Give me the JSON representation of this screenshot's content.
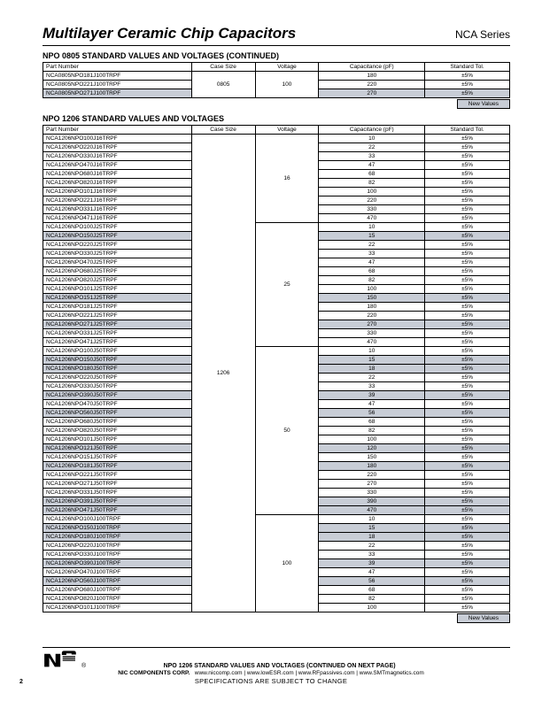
{
  "header": {
    "title": "Multilayer Ceramic Chip Capacitors",
    "series": "NCA Series"
  },
  "section1": {
    "title": "NPO 0805 STANDARD VALUES AND VOLTAGES (CONTINUED)",
    "columns": [
      "Part Number",
      "Case Size",
      "Voltage",
      "Capacitance (pF)",
      "Standard Tol."
    ],
    "case_size": "0805",
    "voltages": [
      {
        "voltage": "100",
        "rows": [
          {
            "part": "NCA0805NPO181J100TRPF",
            "cap": "180",
            "tol": "±5%",
            "new": false
          },
          {
            "part": "NCA0805NPO221J100TRPF",
            "cap": "220",
            "tol": "±5%",
            "new": false
          },
          {
            "part": "NCA0805NPO271J100TRPF",
            "cap": "270",
            "tol": "±5%",
            "new": true
          }
        ]
      }
    ],
    "new_values_label": "New Values"
  },
  "section2": {
    "title": "NPO 1206 STANDARD VALUES AND VOLTAGES",
    "columns": [
      "Part Number",
      "Case Size",
      "Voltage",
      "Capacitance (pF)",
      "Standard Tol."
    ],
    "case_size": "1206",
    "voltages": [
      {
        "voltage": "16",
        "rows": [
          {
            "part": "NCA1206NPO100J16TRPF",
            "cap": "10",
            "tol": "±5%",
            "new": false
          },
          {
            "part": "NCA1206NPO220J16TRPF",
            "cap": "22",
            "tol": "±5%",
            "new": false
          },
          {
            "part": "NCA1206NPO330J16TRPF",
            "cap": "33",
            "tol": "±5%",
            "new": false
          },
          {
            "part": "NCA1206NPO470J16TRPF",
            "cap": "47",
            "tol": "±5%",
            "new": false
          },
          {
            "part": "NCA1206NPO680J16TRPF",
            "cap": "68",
            "tol": "±5%",
            "new": false
          },
          {
            "part": "NCA1206NPO820J16TRPF",
            "cap": "82",
            "tol": "±5%",
            "new": false
          },
          {
            "part": "NCA1206NPO101J16TRPF",
            "cap": "100",
            "tol": "±5%",
            "new": false
          },
          {
            "part": "NCA1206NPO221J16TRPF",
            "cap": "220",
            "tol": "±5%",
            "new": false
          },
          {
            "part": "NCA1206NPO331J16TRPF",
            "cap": "330",
            "tol": "±5%",
            "new": false
          },
          {
            "part": "NCA1206NPO471J16TRPF",
            "cap": "470",
            "tol": "±5%",
            "new": false
          }
        ]
      },
      {
        "voltage": "25",
        "rows": [
          {
            "part": "NCA1206NPO100J25TRPF",
            "cap": "10",
            "tol": "±5%",
            "new": false
          },
          {
            "part": "NCA1206NPO150J25TRPF",
            "cap": "15",
            "tol": "±5%",
            "new": true
          },
          {
            "part": "NCA1206NPO220J25TRPF",
            "cap": "22",
            "tol": "±5%",
            "new": false
          },
          {
            "part": "NCA1206NPO330J25TRPF",
            "cap": "33",
            "tol": "±5%",
            "new": false
          },
          {
            "part": "NCA1206NPO470J25TRPF",
            "cap": "47",
            "tol": "±5%",
            "new": false
          },
          {
            "part": "NCA1206NPO680J25TRPF",
            "cap": "68",
            "tol": "±5%",
            "new": false
          },
          {
            "part": "NCA1206NPO820J25TRPF",
            "cap": "82",
            "tol": "±5%",
            "new": false
          },
          {
            "part": "NCA1206NPO101J25TRPF",
            "cap": "100",
            "tol": "±5%",
            "new": false
          },
          {
            "part": "NCA1206NPO151J25TRPF",
            "cap": "150",
            "tol": "±5%",
            "new": true
          },
          {
            "part": "NCA1206NPO181J25TRPF",
            "cap": "180",
            "tol": "±5%",
            "new": false
          },
          {
            "part": "NCA1206NPO221J25TRPF",
            "cap": "220",
            "tol": "±5%",
            "new": false
          },
          {
            "part": "NCA1206NPO271J25TRPF",
            "cap": "270",
            "tol": "±5%",
            "new": true
          },
          {
            "part": "NCA1206NPO331J25TRPF",
            "cap": "330",
            "tol": "±5%",
            "new": false
          },
          {
            "part": "NCA1206NPO471J25TRPF",
            "cap": "470",
            "tol": "±5%",
            "new": false
          }
        ]
      },
      {
        "voltage": "50",
        "rows": [
          {
            "part": "NCA1206NPO100J50TRPF",
            "cap": "10",
            "tol": "±5%",
            "new": false
          },
          {
            "part": "NCA1206NPO150J50TRPF",
            "cap": "15",
            "tol": "±5%",
            "new": true
          },
          {
            "part": "NCA1206NPO180J50TRPF",
            "cap": "18",
            "tol": "±5%",
            "new": true
          },
          {
            "part": "NCA1206NPO220J50TRPF",
            "cap": "22",
            "tol": "±5%",
            "new": false
          },
          {
            "part": "NCA1206NPO330J50TRPF",
            "cap": "33",
            "tol": "±5%",
            "new": false
          },
          {
            "part": "NCA1206NPO390J50TRPF",
            "cap": "39",
            "tol": "±5%",
            "new": true
          },
          {
            "part": "NCA1206NPO470J50TRPF",
            "cap": "47",
            "tol": "±5%",
            "new": false
          },
          {
            "part": "NCA1206NPO560J50TRPF",
            "cap": "56",
            "tol": "±5%",
            "new": true
          },
          {
            "part": "NCA1206NPO680J50TRPF",
            "cap": "68",
            "tol": "±5%",
            "new": false
          },
          {
            "part": "NCA1206NPO820J50TRPF",
            "cap": "82",
            "tol": "±5%",
            "new": false
          },
          {
            "part": "NCA1206NPO101J50TRPF",
            "cap": "100",
            "tol": "±5%",
            "new": false
          },
          {
            "part": "NCA1206NPO121J50TRPF",
            "cap": "120",
            "tol": "±5%",
            "new": true
          },
          {
            "part": "NCA1206NPO151J50TRPF",
            "cap": "150",
            "tol": "±5%",
            "new": false
          },
          {
            "part": "NCA1206NPO181J50TRPF",
            "cap": "180",
            "tol": "±5%",
            "new": true
          },
          {
            "part": "NCA1206NPO221J50TRPF",
            "cap": "220",
            "tol": "±5%",
            "new": false
          },
          {
            "part": "NCA1206NPO271J50TRPF",
            "cap": "270",
            "tol": "±5%",
            "new": false
          },
          {
            "part": "NCA1206NPO331J50TRPF",
            "cap": "330",
            "tol": "±5%",
            "new": false
          },
          {
            "part": "NCA1206NPO391J50TRPF",
            "cap": "390",
            "tol": "±5%",
            "new": true
          },
          {
            "part": "NCA1206NPO471J50TRPF",
            "cap": "470",
            "tol": "±5%",
            "new": true
          }
        ]
      },
      {
        "voltage": "100",
        "rows": [
          {
            "part": "NCA1206NPO100J100TRPF",
            "cap": "10",
            "tol": "±5%",
            "new": false
          },
          {
            "part": "NCA1206NPO150J100TRPF",
            "cap": "15",
            "tol": "±5%",
            "new": true
          },
          {
            "part": "NCA1206NPO180J100TRPF",
            "cap": "18",
            "tol": "±5%",
            "new": true
          },
          {
            "part": "NCA1206NPO220J100TRPF",
            "cap": "22",
            "tol": "±5%",
            "new": false
          },
          {
            "part": "NCA1206NPO330J100TRPF",
            "cap": "33",
            "tol": "±5%",
            "new": false
          },
          {
            "part": "NCA1206NPO390J100TRPF",
            "cap": "39",
            "tol": "±5%",
            "new": true
          },
          {
            "part": "NCA1206NPO470J100TRPF",
            "cap": "47",
            "tol": "±5%",
            "new": false
          },
          {
            "part": "NCA1206NPO560J100TRPF",
            "cap": "56",
            "tol": "±5%",
            "new": true
          },
          {
            "part": "NCA1206NPO680J100TRPF",
            "cap": "68",
            "tol": "±5%",
            "new": false
          },
          {
            "part": "NCA1206NPO820J100TRPF",
            "cap": "82",
            "tol": "±5%",
            "new": false
          },
          {
            "part": "NCA1206NPO101J100TRPF",
            "cap": "100",
            "tol": "±5%",
            "new": false
          }
        ]
      }
    ],
    "new_values_label": "New Values"
  },
  "footer": {
    "continued": "NPO 1206 STANDARD VALUES AND VOLTAGES (CONTINUED ON NEXT PAGE)",
    "corp": "NIC COMPONENTS CORP.",
    "links": "www.niccomp.com   |   www.lowESR.com   |   www.RFpassives.com   |   www.SMTmagnetics.com",
    "spec": "SPECIFICATIONS ARE SUBJECT TO CHANGE",
    "page": "2",
    "logo_reg": "®"
  }
}
